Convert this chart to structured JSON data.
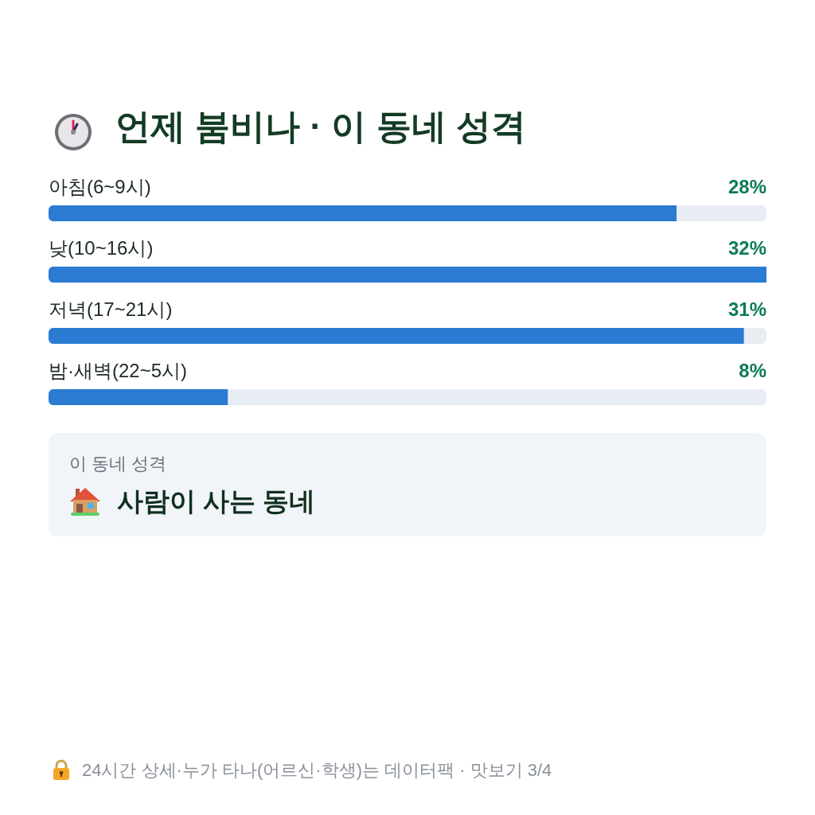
{
  "chart_data": [
    {
      "type": "bar",
      "orientation": "horizontal",
      "title": "언제 붐비나 · 이 동네 성격",
      "categories": [
        "아침(6~9시)",
        "낮(10~16시)",
        "저녁(17~21시)",
        "밤·새벽(22~5시)"
      ],
      "values": [
        28,
        32,
        31,
        8
      ],
      "value_labels": [
        "28%",
        "32%",
        "31%",
        "8%"
      ],
      "color": "#2b7bd3",
      "annotations": [
        "24시간 상세·누가 타나(어르신·학생)는 데이터팩 · 맛보기 3/4"
      ]
    },
    {
      "type": "other",
      "title": "이 동네 성격",
      "annotations": [
        "사람이 사는 동네"
      ]
    }
  ]
}
